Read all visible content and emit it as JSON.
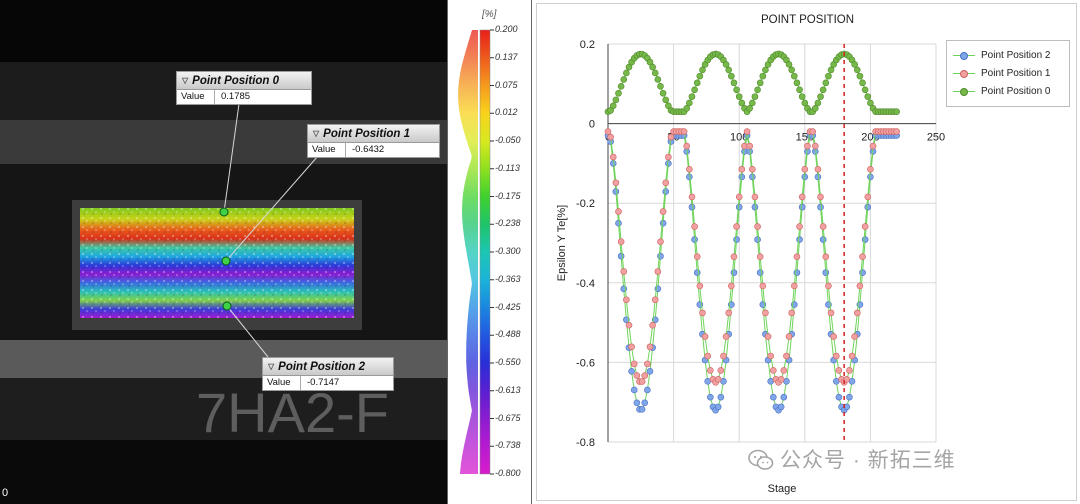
{
  "image_panel": {
    "callouts": [
      {
        "title": "Point Position 0",
        "key": "Value",
        "value": "0.1785"
      },
      {
        "title": "Point Position 1",
        "key": "Value",
        "value": "-0.6432"
      },
      {
        "title": "Point Position 2",
        "key": "Value",
        "value": "-0.7147"
      }
    ],
    "background_text": "7HA2-F",
    "corner_label": "0"
  },
  "color_bar": {
    "unit": "[%]",
    "ticks": [
      "0.200",
      "0.137",
      "0.075",
      "0.012",
      "-0.050",
      "-0.113",
      "-0.175",
      "-0.238",
      "-0.300",
      "-0.363",
      "-0.425",
      "-0.488",
      "-0.550",
      "-0.613",
      "-0.675",
      "-0.738",
      "-0.800"
    ],
    "colors": [
      "#e8201a",
      "#ee5a1c",
      "#f59a1e",
      "#f8d31c",
      "#d8e81e",
      "#8fe01f",
      "#3fd12e",
      "#1fc46a",
      "#1cc6b3",
      "#1ab4d9",
      "#1b86e0",
      "#2258e0",
      "#2a2fd8",
      "#5a1fd2",
      "#8c1cd0",
      "#b61bd0",
      "#d81bcc"
    ]
  },
  "chart_data": {
    "type": "line",
    "title": "POINT POSITION",
    "xlabel": "Stage",
    "ylabel": "Epsilon Y Te[%]",
    "xlim": [
      0,
      250
    ],
    "ylim": [
      -0.8,
      0.2
    ],
    "xticks": [
      "0",
      "50",
      "100",
      "150",
      "200",
      "250"
    ],
    "yticks": [
      "0.2",
      "0",
      "-0.2",
      "-0.4",
      "-0.6",
      "-0.8"
    ],
    "grid": true,
    "legend_position": "top-right",
    "marker_line": {
      "x": 180
    },
    "series": [
      {
        "name": "Point Position 2",
        "color": "#7fa6e8",
        "edge": "#4a6fc2",
        "cycle_min": -0.72
      },
      {
        "name": "Point Position 1",
        "color": "#f0a0a0",
        "edge": "#d06060",
        "cycle_min": -0.65
      },
      {
        "name": "Point Position 0",
        "color": "#77b84a",
        "edge": "#4e8a2a",
        "cycle_max": 0.175
      }
    ],
    "cycles": {
      "period": 58,
      "n_points": 220,
      "peak_stages": [
        25,
        82,
        130,
        180
      ]
    }
  },
  "watermark": "公众号 · 新拓三维"
}
